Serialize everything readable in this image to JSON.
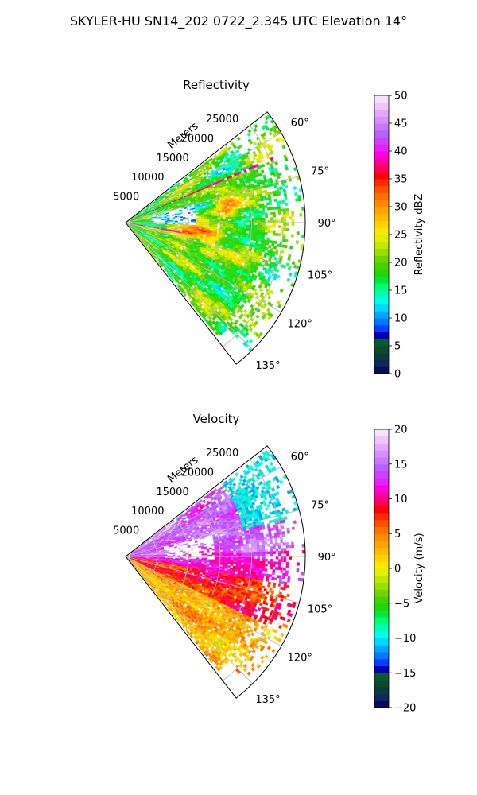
{
  "suptitle": "SKYLER-HU  SN14_202  0722_2.345 UTC Elevation 14°",
  "chart_data": [
    {
      "type": "heatmap",
      "projection": "polar-sector",
      "title": "Reflectivity",
      "radial_label": "Meters",
      "radial_ticks": [
        5000,
        10000,
        15000,
        20000,
        25000
      ],
      "radial_tick_labels": [
        "5000",
        "10000",
        "15000",
        "20000",
        "25000"
      ],
      "rmax_m": 28500,
      "azimuth_range_deg": [
        52,
        142
      ],
      "azimuth_ticks_deg": [
        60,
        75,
        90,
        105,
        120,
        135
      ],
      "azimuth_tick_labels": [
        "60°",
        "75°",
        "90°",
        "105°",
        "120°",
        "135°"
      ],
      "grid": true,
      "colorbar": {
        "label": "Reflectivity dBZ",
        "vmin": 0,
        "vmax": 50,
        "ticks": [
          0,
          5,
          10,
          15,
          20,
          25,
          30,
          35,
          40,
          45,
          50
        ],
        "tick_labels": [
          "0",
          "5",
          "10",
          "15",
          "20",
          "25",
          "30",
          "35",
          "40",
          "45",
          "50"
        ],
        "colors": [
          "#0a0a60",
          "#0d2a5e",
          "#0b3a3a",
          "#0b4a2a",
          "#0a5a30",
          "#0000b4",
          "#0040ff",
          "#0078ff",
          "#00a8ff",
          "#00d8ff",
          "#00ffe8",
          "#00ffb0",
          "#00ff70",
          "#00e840",
          "#20d800",
          "#48d000",
          "#70d400",
          "#98e000",
          "#c0e800",
          "#e0f000",
          "#ffe800",
          "#ffd400",
          "#ffbc00",
          "#ffa400",
          "#ff8c00",
          "#ff7000",
          "#ff5000",
          "#ff2c00",
          "#ff0000",
          "#ff0058",
          "#ff00a0",
          "#ff00e0",
          "#e820ff",
          "#cc40ff",
          "#b860ff",
          "#c878ff",
          "#d890ff",
          "#e6a8ff",
          "#f0c4ff",
          "#f8e0ff"
        ]
      },
      "field_summary": "Mostly 15–25 dBZ (green/yellow) echoes across the sector with scattered 30–40 dBZ cores; a low-reflectivity clear region near 75–90° around 5–10 km."
    },
    {
      "type": "heatmap",
      "projection": "polar-sector",
      "title": "Velocity",
      "radial_label": "Meters",
      "radial_ticks": [
        5000,
        10000,
        15000,
        20000,
        25000
      ],
      "radial_tick_labels": [
        "5000",
        "10000",
        "15000",
        "20000",
        "25000"
      ],
      "rmax_m": 28500,
      "azimuth_range_deg": [
        52,
        142
      ],
      "azimuth_ticks_deg": [
        60,
        75,
        90,
        105,
        120,
        135
      ],
      "azimuth_tick_labels": [
        "60°",
        "75°",
        "90°",
        "105°",
        "120°",
        "135°"
      ],
      "grid": true,
      "colorbar": {
        "label": "Velocity (m/s)",
        "vmin": -20,
        "vmax": 20,
        "ticks": [
          -20,
          -15,
          -10,
          -5,
          0,
          5,
          10,
          15,
          20
        ],
        "tick_labels": [
          "−20",
          "−15",
          "−10",
          "−5",
          "0",
          "5",
          "10",
          "15",
          "20"
        ],
        "colors": [
          "#0a0a60",
          "#0d2a5e",
          "#0b3a3a",
          "#0b4a2a",
          "#0a5a30",
          "#0000b4",
          "#0040ff",
          "#0078ff",
          "#00a8ff",
          "#00d8ff",
          "#00ffe8",
          "#00ffb0",
          "#00ff70",
          "#00e840",
          "#20d800",
          "#48d000",
          "#70d400",
          "#98e000",
          "#c0e800",
          "#e0f000",
          "#ffe800",
          "#ffd400",
          "#ffbc00",
          "#ffa400",
          "#ff8c00",
          "#ff7000",
          "#ff5000",
          "#ff2c00",
          "#ff0000",
          "#ff0058",
          "#ff00a0",
          "#ff00e0",
          "#e820ff",
          "#cc40ff",
          "#b860ff",
          "#c878ff",
          "#d890ff",
          "#e6a8ff",
          "#f0c4ff",
          "#f8e0ff"
        ]
      },
      "field_summary": "Inbound/outbound couplet: +10 to +15 m/s (magenta/red) north of ~90°, 0 to +8 m/s (yellow/orange) south of ~100°, small −10 to −15 m/s (cyan) patch near 70° at 20–25 km."
    }
  ]
}
